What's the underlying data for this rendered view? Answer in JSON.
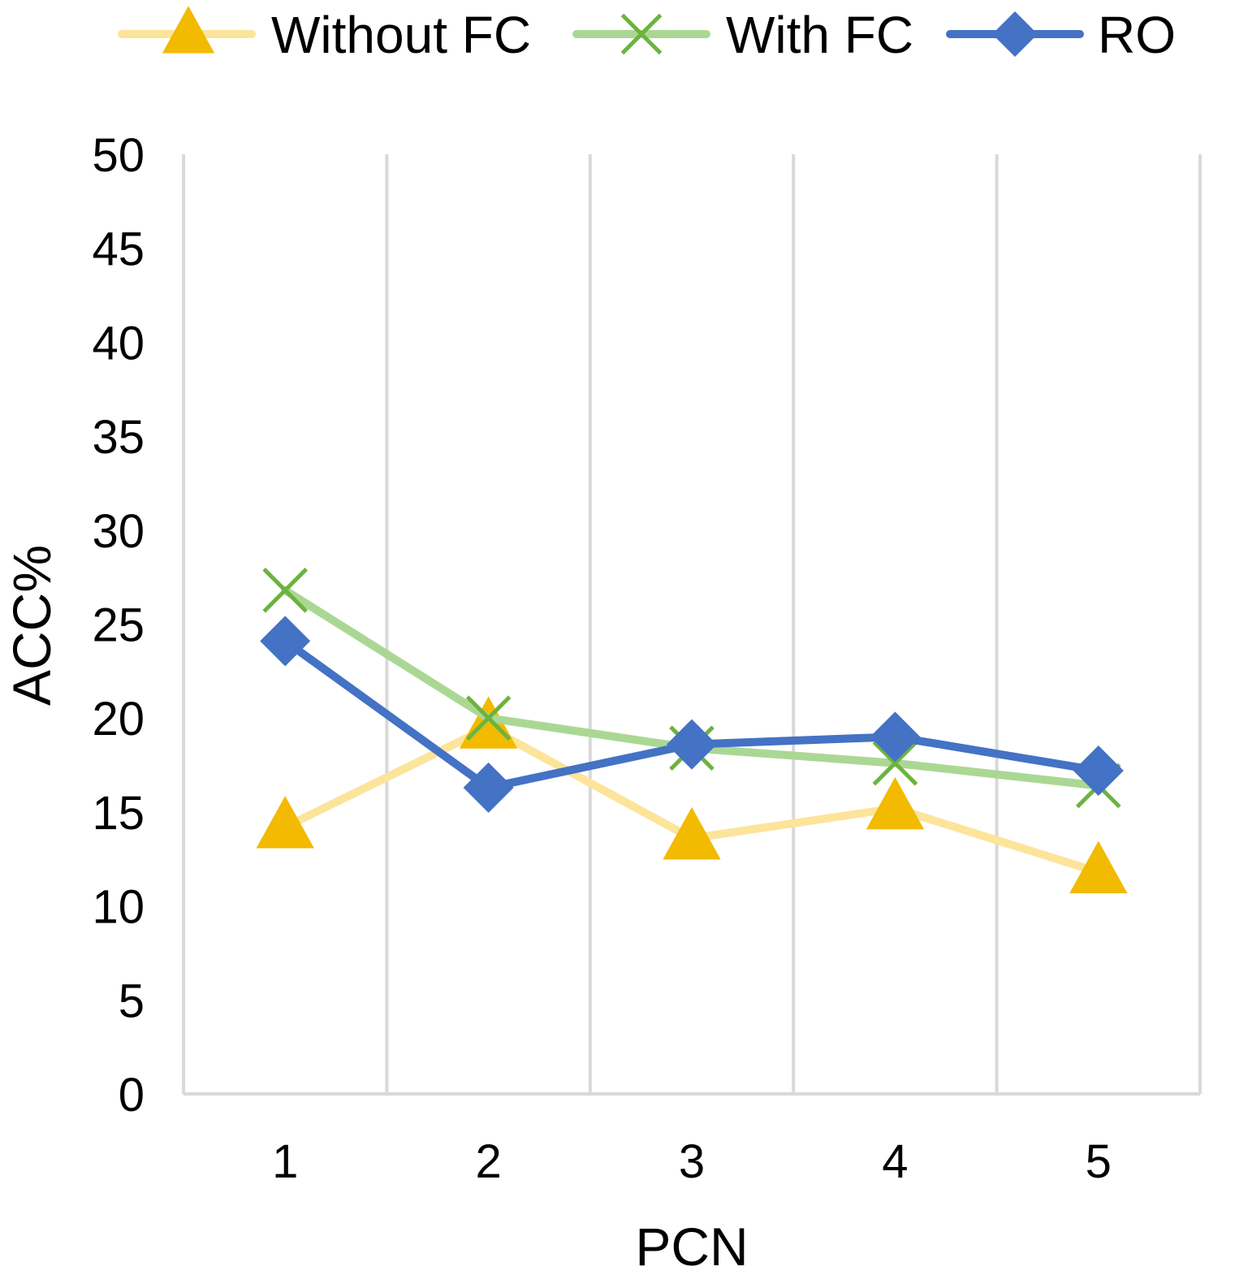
{
  "chart_data": {
    "type": "line",
    "title": "",
    "xlabel": "PCN",
    "ylabel": "ACC%",
    "categories": [
      "1",
      "2",
      "3",
      "4",
      "5"
    ],
    "yticks": [
      "0",
      "5",
      "10",
      "15",
      "20",
      "25",
      "30",
      "35",
      "40",
      "45",
      "50"
    ],
    "ylim": [
      0,
      50
    ],
    "grid": "vertical",
    "legend": "top",
    "series": [
      {
        "name": "Without FC",
        "values": [
          14.2,
          19.5,
          13.6,
          15.2,
          11.8
        ],
        "line_color": "#FCE49A",
        "marker_color": "#F2BA00",
        "marker": "triangle-icon"
      },
      {
        "name": "With FC",
        "values": [
          26.8,
          20.0,
          18.4,
          17.6,
          16.4
        ],
        "line_color": "#AAD894",
        "marker_color": "#6CB33F",
        "marker": "x-icon"
      },
      {
        "name": "RO",
        "values": [
          24.1,
          16.3,
          18.6,
          19.0,
          17.2
        ],
        "line_color": "#4472C4",
        "marker_color": "#4472C4",
        "marker": "diamond-icon"
      }
    ]
  }
}
